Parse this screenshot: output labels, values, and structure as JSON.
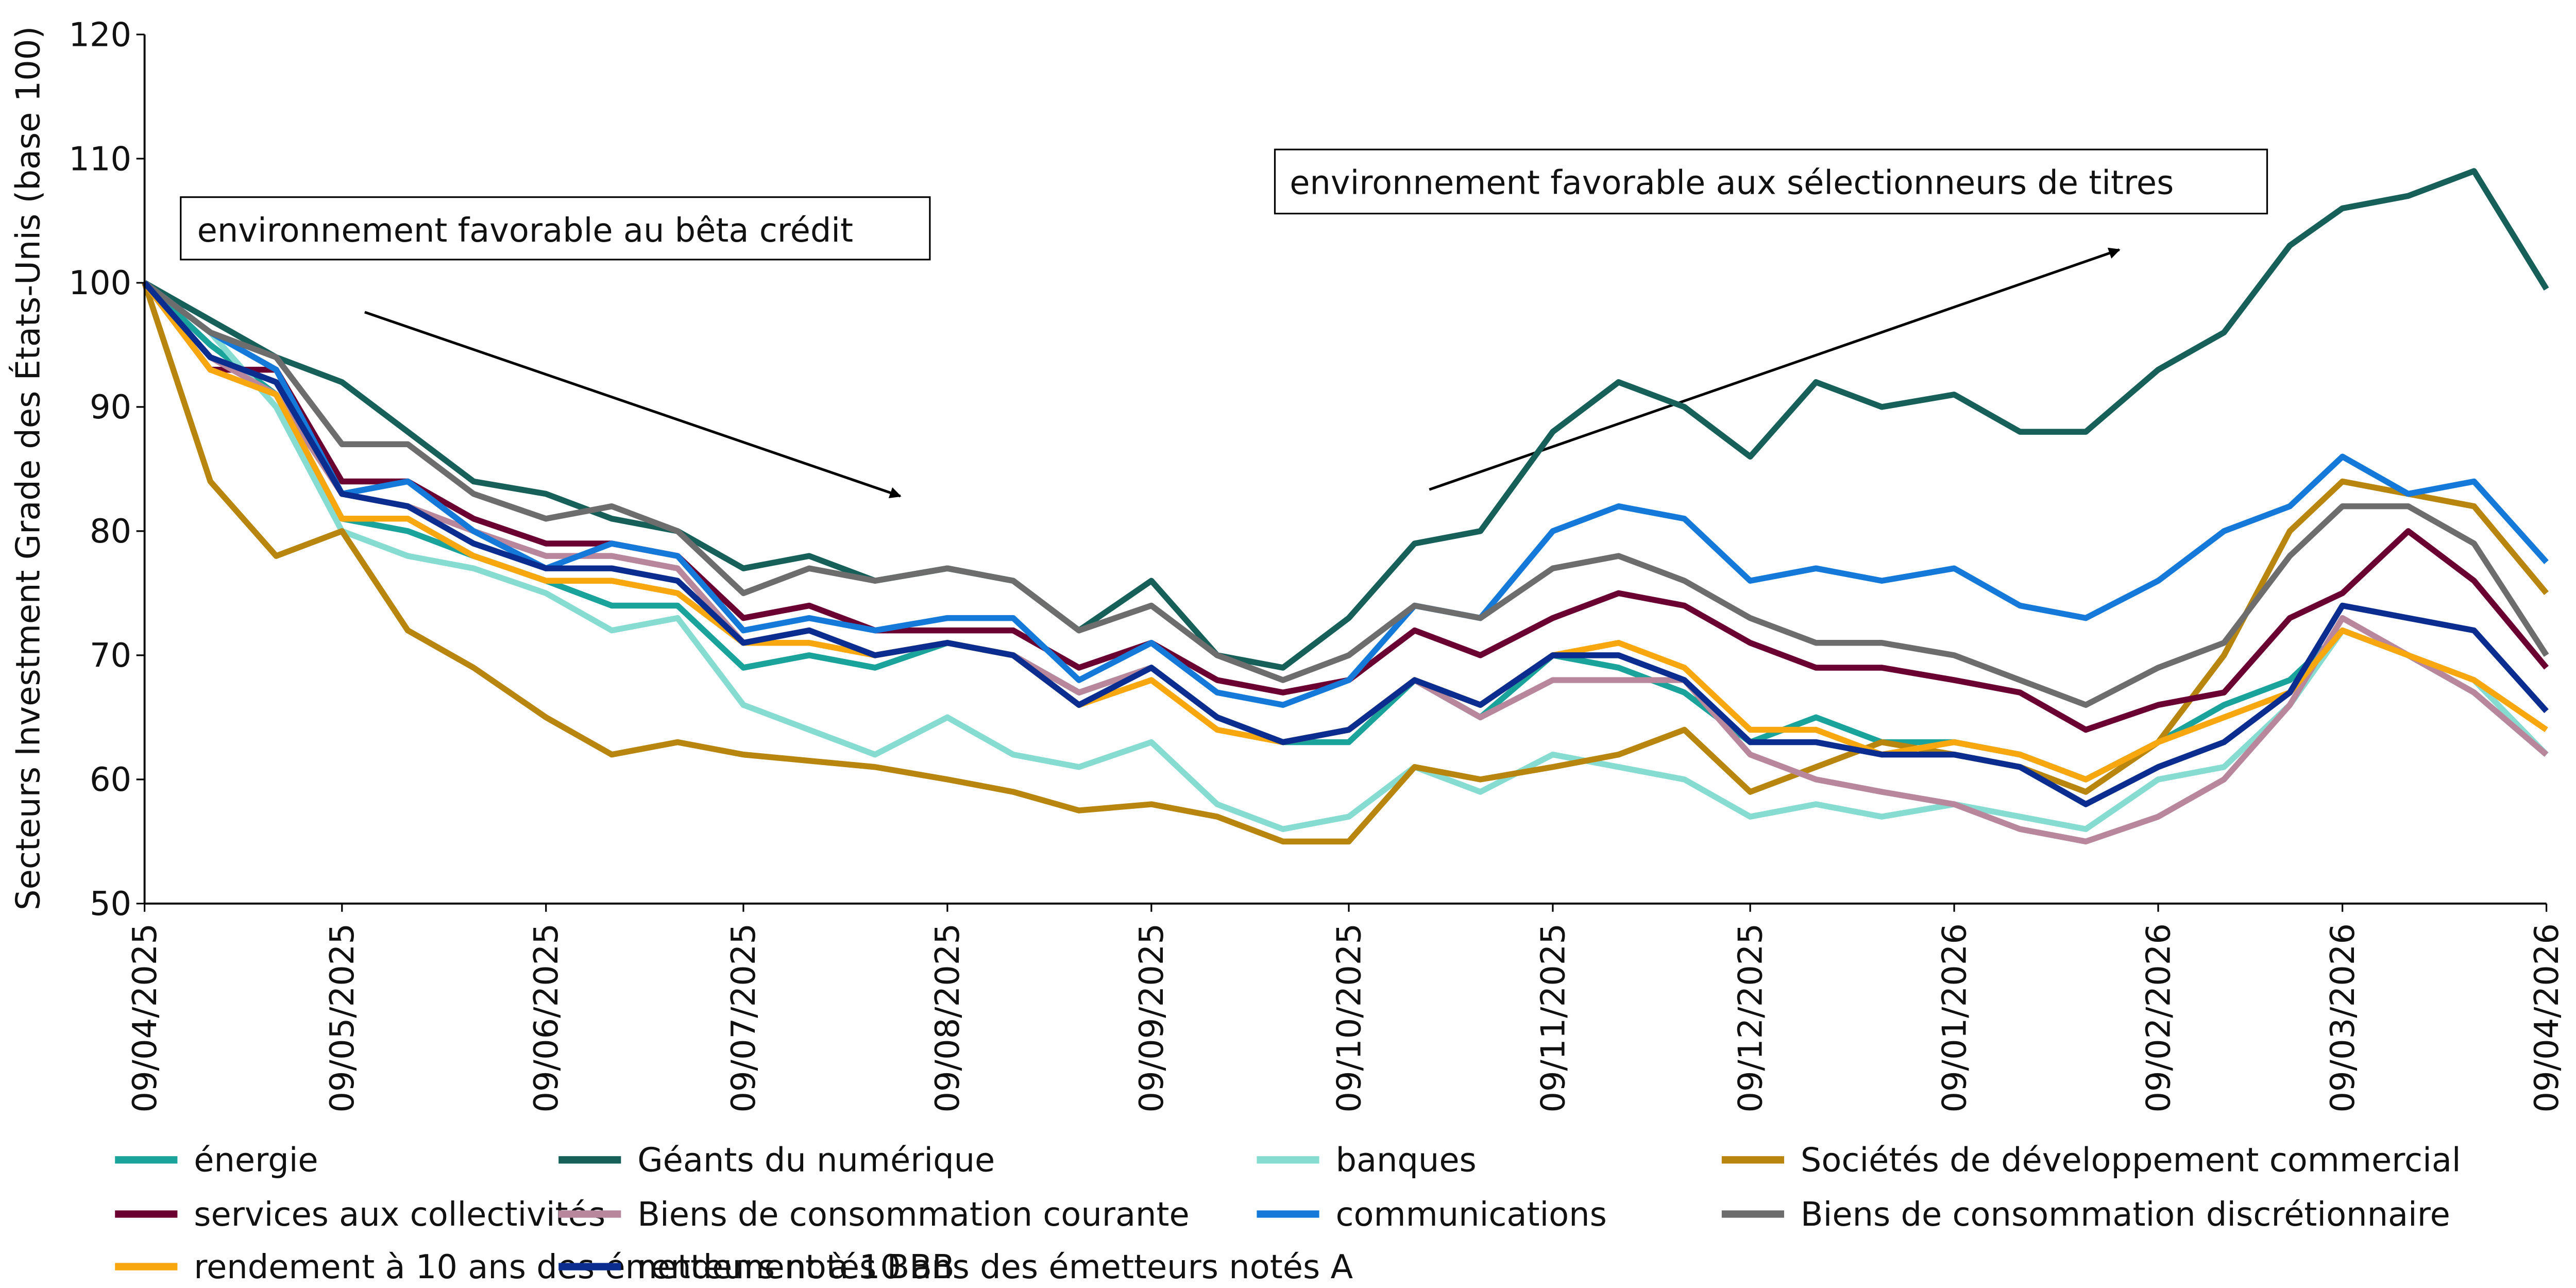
{
  "chart_data": {
    "type": "line",
    "ylabel": "Secteurs Investment Grade des États-Unis (base 100)",
    "annotations": [
      "environnement favorable au bêta crédit",
      "environnement favorable aux sélectionneurs de titres"
    ],
    "x": [
      "09/04/2025",
      "19/04/2025",
      "29/04/2025",
      "09/05/2025",
      "19/05/2025",
      "29/05/2025",
      "09/06/2025",
      "19/06/2025",
      "29/06/2025",
      "09/07/2025",
      "19/07/2025",
      "29/07/2025",
      "09/08/2025",
      "19/08/2025",
      "29/08/2025",
      "09/09/2025",
      "19/09/2025",
      "29/09/2025",
      "09/10/2025",
      "19/10/2025",
      "29/10/2025",
      "09/11/2025",
      "19/11/2025",
      "29/11/2025",
      "09/12/2025",
      "19/12/2025",
      "29/12/2025",
      "09/01/2026",
      "19/01/2026",
      "29/01/2026",
      "09/02/2026",
      "19/02/2026",
      "01/03/2026",
      "09/03/2026",
      "19/03/2026",
      "29/03/2026",
      "09/04/2026"
    ],
    "xlim": [
      "09/04/2025",
      "09/04/2026"
    ],
    "xticks": [
      "09/04/2025",
      "09/05/2025",
      "09/06/2025",
      "09/07/2025",
      "09/08/2025",
      "09/09/2025",
      "09/10/2025",
      "09/11/2025",
      "09/12/2025",
      "09/01/2026",
      "09/02/2026",
      "09/03/2026",
      "09/04/2026"
    ],
    "ylim": [
      50,
      120
    ],
    "yticks": [
      50,
      60,
      70,
      80,
      90,
      100,
      110,
      120
    ],
    "grid": false,
    "legend": "bottom",
    "series": [
      {
        "name": "énergie",
        "color": "#1aa39a",
        "values": [
          100,
          95,
          91,
          81,
          80,
          78,
          76,
          74,
          74,
          69,
          70,
          69,
          71,
          70,
          67,
          69,
          65,
          63,
          63,
          68,
          65,
          70,
          69,
          67,
          63,
          65,
          63,
          63,
          62,
          60,
          63,
          66,
          68,
          72,
          70,
          67,
          62
        ]
      },
      {
        "name": "Géants du numérique",
        "color": "#17605a",
        "values": [
          100,
          97,
          94,
          92,
          88,
          84,
          83,
          81,
          80,
          77,
          78,
          76,
          77,
          76,
          72,
          76,
          70,
          69,
          73,
          79,
          80,
          88,
          92,
          90,
          86,
          92,
          90,
          91,
          88,
          88,
          93,
          96,
          103,
          106,
          107,
          109,
          99.5
        ]
      },
      {
        "name": "banques",
        "color": "#86dcd1",
        "values": [
          100,
          96,
          90,
          80,
          78,
          77,
          75,
          72,
          73,
          66,
          64,
          62,
          65,
          62,
          61,
          63,
          58,
          56,
          57,
          61,
          59,
          62,
          61,
          60,
          57,
          58,
          57,
          58,
          57,
          56,
          60,
          61,
          66,
          72,
          70,
          68,
          62
        ]
      },
      {
        "name": "Sociétés de développement commercial",
        "color": "#b8860f",
        "values": [
          100,
          84,
          78,
          80,
          72,
          69,
          65,
          62,
          63,
          62,
          61.5,
          61,
          60,
          59,
          57.5,
          58,
          57,
          55,
          55,
          61,
          60,
          61,
          62,
          64,
          59,
          61,
          63,
          62,
          61,
          59,
          63,
          70,
          80,
          84,
          83,
          82,
          75
        ]
      },
      {
        "name": "services aux collectivités",
        "color": "#6a0032",
        "values": [
          100,
          93,
          93,
          84,
          84,
          81,
          79,
          79,
          78,
          73,
          74,
          72,
          72,
          72,
          69,
          71,
          68,
          67,
          68,
          72,
          70,
          73,
          75,
          74,
          71,
          69,
          69,
          68,
          67,
          64,
          66,
          67,
          73,
          75,
          80,
          76,
          69
        ]
      },
      {
        "name": "Biens de consommation courante",
        "color": "#b9879b",
        "values": [
          100,
          94,
          91,
          83,
          82,
          80,
          78,
          78,
          77,
          71,
          72,
          70,
          71,
          70,
          67,
          69,
          65,
          63,
          64,
          68,
          65,
          68,
          68,
          68,
          62,
          60,
          59,
          58,
          56,
          55,
          57,
          60,
          66,
          73,
          70,
          67,
          62
        ]
      },
      {
        "name": "communications",
        "color": "#1479d8",
        "values": [
          100,
          96,
          93,
          83,
          84,
          80,
          77,
          79,
          78,
          72,
          73,
          72,
          73,
          73,
          68,
          71,
          67,
          66,
          68,
          74,
          73,
          80,
          82,
          81,
          76,
          77,
          76,
          77,
          74,
          73,
          76,
          80,
          82,
          86,
          83,
          84,
          77.5
        ]
      },
      {
        "name": "Biens de consommation discrétionnaire",
        "color": "#6d6d6d",
        "values": [
          100,
          96,
          94,
          87,
          87,
          83,
          81,
          82,
          80,
          75,
          77,
          76,
          77,
          76,
          72,
          74,
          70,
          68,
          70,
          74,
          73,
          77,
          78,
          76,
          73,
          71,
          71,
          70,
          68,
          66,
          69,
          71,
          78,
          82,
          82,
          79,
          70
        ]
      },
      {
        "name": "rendement à 10 ans des émetteurs notés BBB",
        "color": "#f8a70f",
        "values": [
          100,
          93,
          91,
          81,
          81,
          78,
          76,
          76,
          75,
          71,
          71,
          70,
          71,
          70,
          66,
          68,
          64,
          63,
          64,
          68,
          66,
          70,
          71,
          69,
          64,
          64,
          62,
          63,
          62,
          60,
          63,
          65,
          67,
          72,
          70,
          68,
          64
        ]
      },
      {
        "name": "rendement à 10 ans des émetteurs notés A",
        "color": "#0b2d8f",
        "values": [
          100,
          94,
          92,
          83,
          82,
          79,
          77,
          77,
          76,
          71,
          72,
          70,
          71,
          70,
          66,
          69,
          65,
          63,
          64,
          68,
          66,
          70,
          70,
          68,
          63,
          63,
          62,
          62,
          61,
          58,
          61,
          63,
          67,
          74,
          73,
          72,
          65.5
        ]
      }
    ]
  }
}
